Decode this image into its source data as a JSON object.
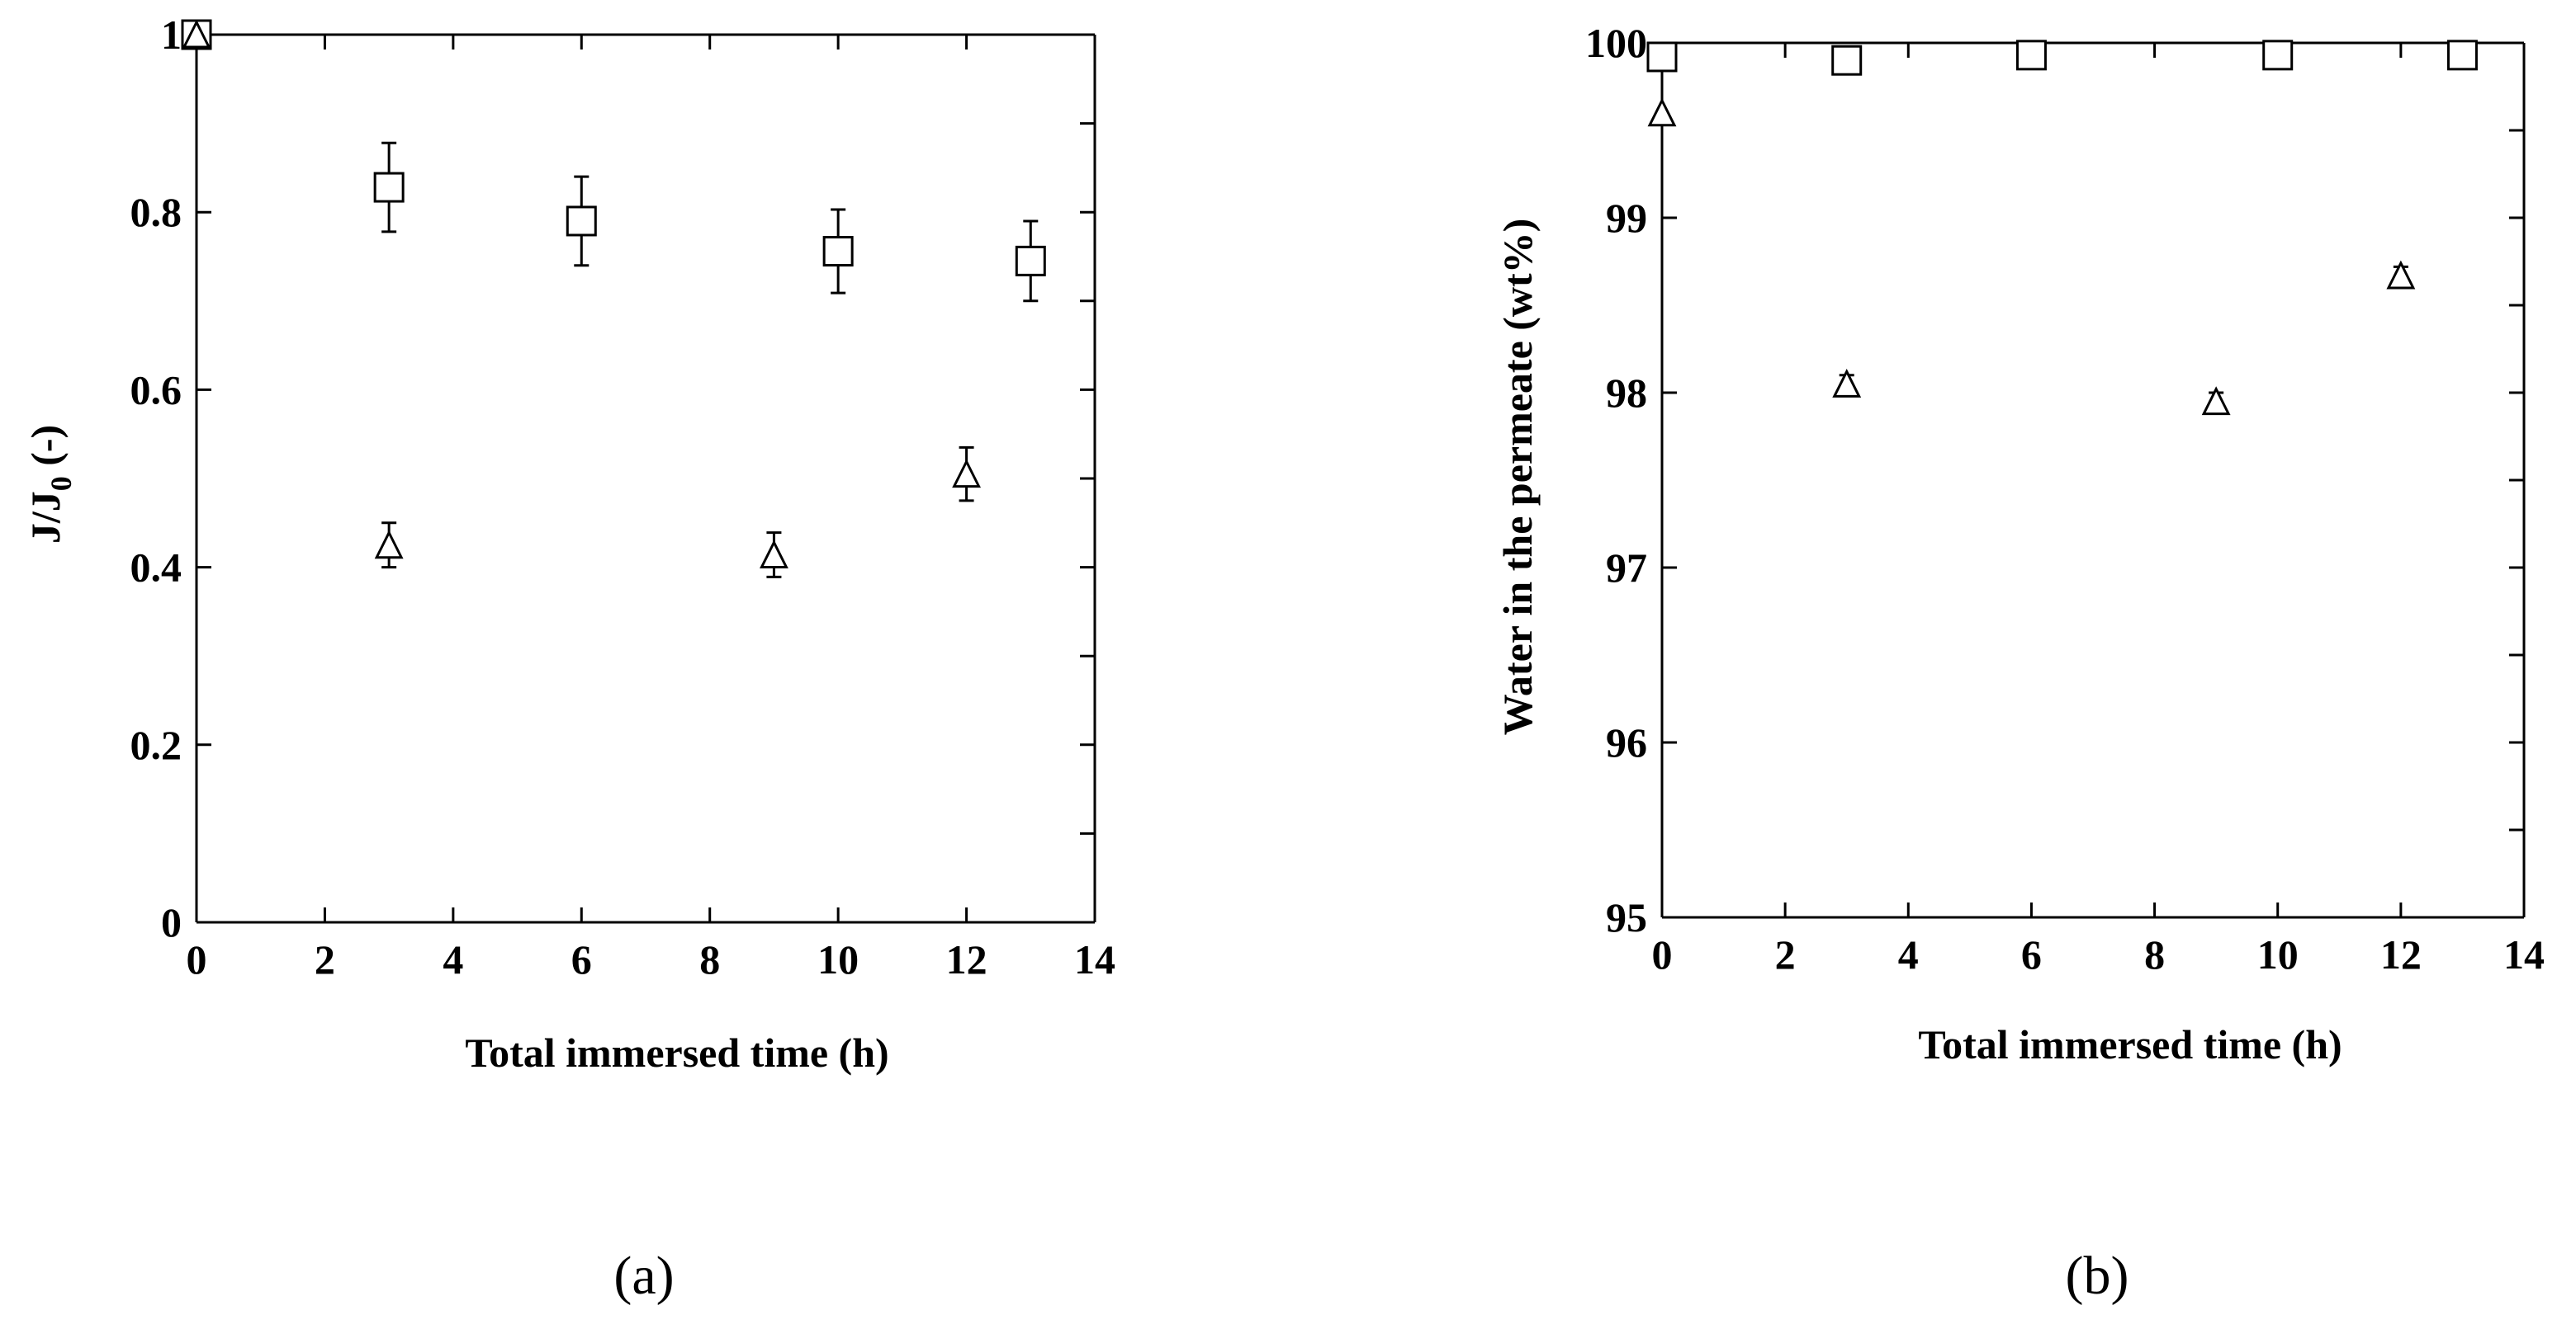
{
  "chart_data": [
    {
      "type": "scatter",
      "panel_label": "(a)",
      "xlabel": "Total immersed time (h)",
      "ylabel": "J/J",
      "ylabel_sub": "0",
      "ylabel_suffix": " (-)",
      "xlim": [
        0,
        14
      ],
      "ylim": [
        0,
        1
      ],
      "xticks": [
        0,
        2,
        4,
        6,
        8,
        10,
        12,
        14
      ],
      "yticks": [
        0,
        0.2,
        0.4,
        0.6,
        0.8,
        1
      ],
      "ytick_labels": [
        "0",
        "0.2",
        "0.4",
        "0.6",
        "0.8",
        "1"
      ],
      "minor_right_yticks": [
        0.1,
        0.3,
        0.5,
        0.7,
        0.9
      ],
      "grid": false,
      "legend": "none",
      "series": [
        {
          "marker": "square",
          "points": [
            {
              "x": 0,
              "y": 1.0
            },
            {
              "x": 3,
              "y": 0.828,
              "err": 0.05
            },
            {
              "x": 6,
              "y": 0.79,
              "err": 0.05
            },
            {
              "x": 10,
              "y": 0.756,
              "err": 0.047
            },
            {
              "x": 13,
              "y": 0.745,
              "err": 0.045
            }
          ]
        },
        {
          "marker": "triangle",
          "points": [
            {
              "x": 0,
              "y": 1.0
            },
            {
              "x": 3,
              "y": 0.425,
              "err": 0.025
            },
            {
              "x": 9,
              "y": 0.414,
              "err": 0.025
            },
            {
              "x": 12,
              "y": 0.505,
              "err": 0.03
            }
          ]
        }
      ]
    },
    {
      "type": "scatter",
      "panel_label": "(b)",
      "xlabel": "Total immersed time (h)",
      "ylabel": "Water in the permeate (wt%)",
      "xlim": [
        0,
        14
      ],
      "ylim": [
        95,
        100
      ],
      "xticks": [
        0,
        2,
        4,
        6,
        8,
        10,
        12,
        14
      ],
      "yticks": [
        95,
        96,
        97,
        98,
        99,
        100
      ],
      "ytick_labels": [
        "95",
        "96",
        "97",
        "98",
        "99",
        "100"
      ],
      "minor_right_yticks": [
        95.5,
        96.5,
        97.5,
        98.5,
        99.5
      ],
      "grid": false,
      "legend": "none",
      "series": [
        {
          "marker": "square",
          "points": [
            {
              "x": 0,
              "y": 99.92
            },
            {
              "x": 3,
              "y": 99.9
            },
            {
              "x": 6,
              "y": 99.93
            },
            {
              "x": 10,
              "y": 99.93
            },
            {
              "x": 13,
              "y": 99.93
            }
          ]
        },
        {
          "marker": "triangle",
          "points": [
            {
              "x": 0,
              "y": 99.6
            },
            {
              "x": 3,
              "y": 98.05,
              "err": 0.05
            },
            {
              "x": 9,
              "y": 97.95,
              "err": 0.05
            },
            {
              "x": 12,
              "y": 98.67,
              "err": 0.05
            }
          ]
        }
      ]
    }
  ]
}
